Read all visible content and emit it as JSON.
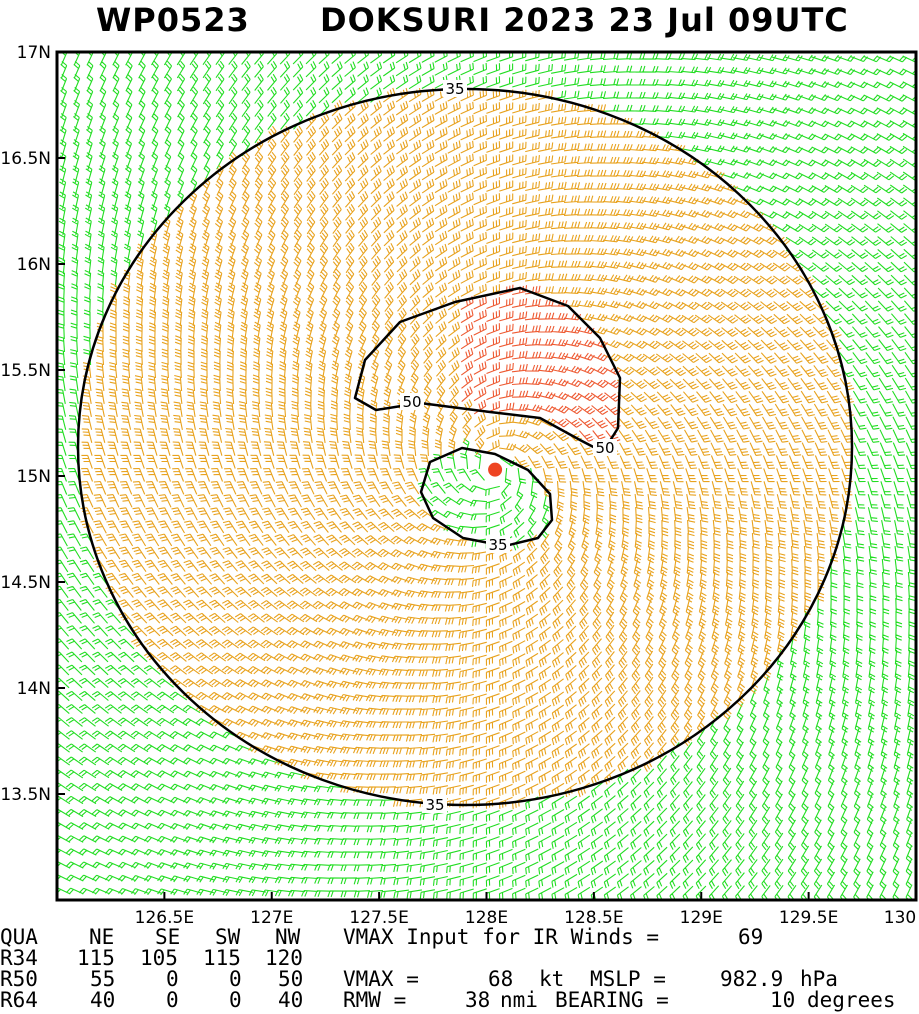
{
  "title": {
    "storm_id": "WP0523",
    "storm_text": "DOKSURI 2023 23 Jul 09UTC"
  },
  "colors": {
    "weak_barb": "#22dd22",
    "ts_barb": "#e8a21e",
    "strong_barb": "#ee5a32",
    "contour": "#000000",
    "center_marker": "#ee4422"
  },
  "map": {
    "lon_range": [
      126.0,
      130.0
    ],
    "lat_range": [
      13.0,
      17.0
    ],
    "lon_ticks": [
      "126.5E",
      "127E",
      "127.5E",
      "128E",
      "128.5E",
      "129E",
      "129.5E",
      "130"
    ],
    "lat_ticks": [
      "17N",
      "16.5N",
      "16N",
      "15.5N",
      "15N",
      "14.5N",
      "14N",
      "13.5N"
    ],
    "center": {
      "lon": 128.04,
      "lat": 15.03
    },
    "contours": [
      {
        "label": "35",
        "type": "outer"
      },
      {
        "label": "50",
        "type": "ring"
      },
      {
        "label": "35",
        "type": "inner"
      }
    ]
  },
  "info": {
    "header": {
      "qua": "QUA",
      "ne": "NE",
      "se": "SE",
      "sw": "SW",
      "nw": "NW"
    },
    "rows": [
      {
        "label": "R34",
        "ne": "115",
        "se": "105",
        "sw": "115",
        "nw": "120"
      },
      {
        "label": "R50",
        "ne": "55",
        "se": "0",
        "sw": "0",
        "nw": "50"
      },
      {
        "label": "R64",
        "ne": "40",
        "se": "0",
        "sw": "0",
        "nw": "40"
      }
    ],
    "vmax_input_label": "VMAX Input for IR Winds =",
    "vmax_input_value": "69",
    "vmax_label": "VMAX =",
    "vmax_value": "68",
    "kt_label": "kt",
    "mslp_label": "MSLP =",
    "mslp_value": "982.9",
    "mslp_unit": "hPa",
    "rmw_label": "RMW =",
    "rmw_value": "38",
    "nmi_label": "nmi",
    "bearing_label": "BEARING =",
    "bearing_value": "10",
    "bearing_unit": "degrees"
  }
}
